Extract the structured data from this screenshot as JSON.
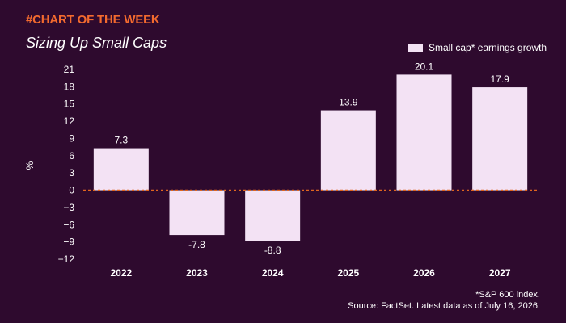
{
  "header": {
    "kicker": "#CHART OF THE WEEK",
    "title": "Sizing Up Small Caps"
  },
  "footer": {
    "note_line1": "*S&P 600 index.",
    "note_line2": "Source: FactSet. Latest data as of July 16, 2026."
  },
  "colors": {
    "background": "#2e0a2e",
    "kicker": "#f26a2e",
    "bar": "#f3e2f4",
    "zero_line": "#e0651f",
    "text": "#ffffff"
  },
  "chart_data": {
    "type": "bar",
    "title": "Sizing Up Small Caps",
    "xlabel": "",
    "ylabel": "%",
    "categories": [
      "2022",
      "2023",
      "2024",
      "2025",
      "2026",
      "2027"
    ],
    "series": [
      {
        "name": "Small cap* earnings growth",
        "values": [
          7.3,
          -7.8,
          -8.8,
          13.9,
          20.1,
          17.9
        ]
      }
    ],
    "data_labels": [
      "7.3",
      "-7.8",
      "-8.8",
      "13.9",
      "20.1",
      "17.9"
    ],
    "ylim": [
      -12,
      21
    ],
    "yticks": [
      21,
      18,
      15,
      12,
      9,
      6,
      3,
      0,
      -3,
      -6,
      -9,
      -12
    ],
    "ytick_labels": [
      "21",
      "18",
      "15",
      "12",
      "9",
      "6",
      "3",
      "0",
      "−3",
      "−6",
      "−9",
      "−12"
    ],
    "grid": false,
    "legend": "top-right"
  }
}
